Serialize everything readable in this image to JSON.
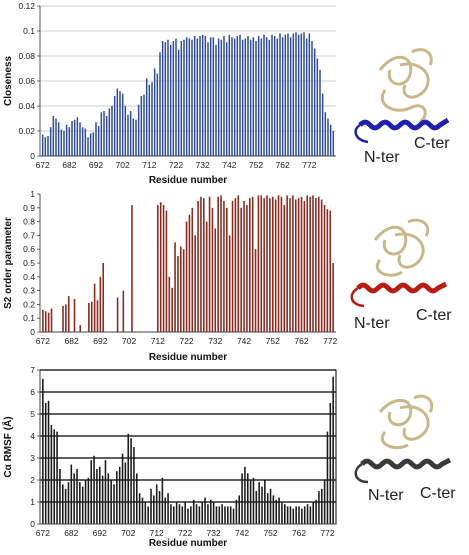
{
  "chart_data": [
    {
      "type": "bar",
      "xlabel": "Residue number",
      "ylabel": "Closeness",
      "ylim": [
        0,
        0.12
      ],
      "yticks": [
        "0",
        "0.02",
        "0.04",
        "0.06",
        "0.08",
        "0.1",
        "0.12"
      ],
      "xticks": [
        "672",
        "682",
        "692",
        "702",
        "712",
        "722",
        "732",
        "742",
        "752",
        "762",
        "772"
      ],
      "grid": "horizontal",
      "color": "#2c4a9e",
      "x_start": 672,
      "values": [
        0.017,
        0.015,
        0.016,
        0.023,
        0.032,
        0.03,
        0.027,
        0.021,
        0.02,
        0.025,
        0.023,
        0.028,
        0.029,
        0.031,
        0.027,
        0.023,
        0.022,
        0.015,
        0.018,
        0.019,
        0.027,
        0.024,
        0.035,
        0.036,
        0.032,
        0.038,
        0.04,
        0.048,
        0.054,
        0.052,
        0.05,
        0.04,
        0.033,
        0.036,
        0.03,
        0.029,
        0.041,
        0.048,
        0.049,
        0.062,
        0.057,
        0.059,
        0.07,
        0.066,
        0.083,
        0.092,
        0.091,
        0.093,
        0.089,
        0.092,
        0.094,
        0.085,
        0.092,
        0.093,
        0.095,
        0.094,
        0.093,
        0.096,
        0.094,
        0.096,
        0.097,
        0.096,
        0.091,
        0.095,
        0.095,
        0.089,
        0.094,
        0.093,
        0.096,
        0.091,
        0.097,
        0.095,
        0.094,
        0.096,
        0.097,
        0.093,
        0.094,
        0.096,
        0.093,
        0.095,
        0.092,
        0.096,
        0.094,
        0.097,
        0.095,
        0.093,
        0.097,
        0.096,
        0.094,
        0.098,
        0.095,
        0.097,
        0.098,
        0.095,
        0.098,
        0.099,
        0.097,
        0.098,
        0.099,
        0.094,
        0.098,
        0.092,
        0.086,
        0.078,
        0.069,
        0.05,
        0.035,
        0.03,
        0.025,
        0.02
      ]
    },
    {
      "type": "bar",
      "xlabel": "Residue number",
      "ylabel": "S2 order parameter",
      "ylim": [
        0,
        1
      ],
      "yticks": [
        "0",
        "0.1",
        "0.2",
        "0.3",
        "0.4",
        "0.5",
        "0.6",
        "0.7",
        "0.8",
        "0.9",
        "1"
      ],
      "xticks": [
        "672",
        "682",
        "692",
        "702",
        "712",
        "722",
        "732",
        "742",
        "752",
        "762",
        "772"
      ],
      "grid": "none",
      "color": "#8b2a1e",
      "x_start": 672,
      "values": [
        0.16,
        0.15,
        0.14,
        0.17,
        0,
        0,
        0,
        0.19,
        0.2,
        0.26,
        0,
        0.24,
        0,
        0.05,
        0,
        0,
        0.21,
        0.22,
        0.35,
        0.23,
        0.4,
        0.5,
        0,
        0,
        0,
        0,
        0.25,
        0,
        0.3,
        0,
        0,
        0.92,
        0,
        0,
        0,
        0,
        0,
        0,
        0,
        0,
        0.92,
        0.94,
        0.92,
        0.88,
        0.4,
        0.32,
        0.65,
        0.55,
        0.62,
        0.6,
        0.8,
        0.85,
        0.9,
        0.7,
        0.95,
        0.98,
        0.97,
        0.8,
        0.98,
        0.9,
        0.75,
        0.98,
        0.99,
        0.95,
        0.9,
        0.7,
        0.95,
        0.97,
        0.99,
        0.9,
        0.95,
        0.92,
        0.97,
        0.98,
        0.6,
        0.99,
        0.99,
        0.97,
        0.99,
        0.97,
        0.98,
        0.96,
        0.99,
        0.98,
        0.92,
        0.99,
        0.97,
        0.99,
        0.96,
        0.97,
        0.98,
        0.95,
        0.99,
        0.98,
        0.99,
        0.97,
        0.98,
        0.96,
        0.92,
        0.89,
        0.88,
        0.5
      ]
    },
    {
      "type": "bar",
      "xlabel": "Residue number",
      "ylabel": "Cα RMSF (Å)",
      "ylim": [
        0,
        7
      ],
      "yticks": [
        "0",
        "1",
        "2",
        "3",
        "4",
        "5",
        "6",
        "7"
      ],
      "xticks": [
        "672",
        "682",
        "692",
        "702",
        "712",
        "722",
        "732",
        "742",
        "752",
        "762",
        "772"
      ],
      "grid": "horizontal",
      "color": "#1a1a1a",
      "x_start": 672,
      "values": [
        6.6,
        5.5,
        5.6,
        4.5,
        4.3,
        4.2,
        2.5,
        1.8,
        1.6,
        1.9,
        2.7,
        2.3,
        2.5,
        1.9,
        1.7,
        2.0,
        2.1,
        2.9,
        3.1,
        2.5,
        2.6,
        2.2,
        2.9,
        2.3,
        2.0,
        1.8,
        2.4,
        2.6,
        3.2,
        2.8,
        4.1,
        3.9,
        3.5,
        2.3,
        1.4,
        1.2,
        1.0,
        0.8,
        1.6,
        1.3,
        1.8,
        1.5,
        2.1,
        1.2,
        1.4,
        0.9,
        0.8,
        1.0,
        0.9,
        0.8,
        1.0,
        0.7,
        0.8,
        1.1,
        0.9,
        0.8,
        1.0,
        1.2,
        0.9,
        1.1,
        1.0,
        0.8,
        0.8,
        0.9,
        0.8,
        0.8,
        0.8,
        0.7,
        1.1,
        1.3,
        2.3,
        2.6,
        2.3,
        2.0,
        2.1,
        1.5,
        1.9,
        1.7,
        2.0,
        1.4,
        1.6,
        1.3,
        1.1,
        1.2,
        1.0,
        0.9,
        0.8,
        0.8,
        0.7,
        0.8,
        0.8,
        0.7,
        0.8,
        0.9,
        0.8,
        1.0,
        1.1,
        1.5,
        1.6,
        2.0,
        4.2,
        5.5,
        6.7
      ]
    }
  ],
  "structures": [
    {
      "n_label": "N-ter",
      "c_label": "C-ter",
      "helix_color": "#1f1fb0"
    },
    {
      "n_label": "N-ter",
      "c_label": "C-ter",
      "helix_color": "#b81c10"
    },
    {
      "n_label": "N-ter",
      "c_label": "C-ter",
      "helix_color": "#3a3a3a"
    }
  ]
}
